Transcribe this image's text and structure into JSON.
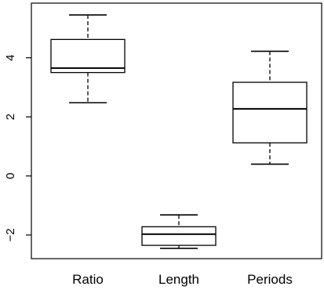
{
  "chart_data": {
    "type": "boxplot",
    "categories": [
      "Ratio",
      "Length",
      "Periods"
    ],
    "series": [
      {
        "label": "Ratio",
        "whisker_low": 2.48,
        "q1": 3.5,
        "median": 3.65,
        "q3": 4.62,
        "whisker_high": 5.45
      },
      {
        "label": "Length",
        "whisker_low": -2.45,
        "q1": -2.35,
        "median": -1.97,
        "q3": -1.72,
        "whisker_high": -1.32
      },
      {
        "label": "Periods",
        "whisker_low": 0.4,
        "q1": 1.12,
        "median": 2.27,
        "q3": 3.17,
        "whisker_high": 4.22
      }
    ],
    "yticks": [
      -2,
      0,
      2,
      4
    ],
    "ylim": [
      -2.8,
      5.85
    ],
    "colors": {
      "line": "#000000",
      "box_fill": "#ffffff"
    },
    "whisker_style": "dashed",
    "grid": false,
    "legend": "none"
  }
}
